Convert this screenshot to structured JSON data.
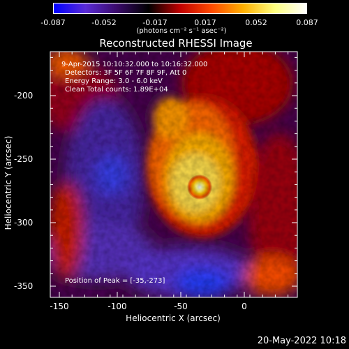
{
  "colorbar": {
    "ticks": [
      "-0.087",
      "-0.052",
      "-0.017",
      "0.017",
      "0.052",
      "0.087"
    ],
    "units": "(photons cm⁻² s⁻¹ asec⁻²)",
    "colors": [
      "#0000ff",
      "#5a2bd6",
      "#3a0a6a",
      "#000000",
      "#c00000",
      "#ff4a00",
      "#ffb000",
      "#ffff80",
      "#ffffff"
    ]
  },
  "title": "Reconstructed RHESSI Image",
  "info": {
    "line1": "9-Apr-2015 10:10:32.000 to 10:16:32.000",
    "line2": "Detectors: 3F 5F 6F 7F 8F 9F, Att 0",
    "line3": "Energy Range: 3.0 - 6.0 keV",
    "line4": "Clean     Total counts: 1.89E+04"
  },
  "peak": "Position of Peak = [-35,-273]",
  "axes": {
    "xlabel": "Heliocentric X (arcsec)",
    "ylabel": "Heliocentric Y (arcsec)",
    "xticks": [
      "-150",
      "-100",
      "-50",
      "0"
    ],
    "yticks": [
      "-200",
      "-250",
      "-300",
      "-350"
    ]
  },
  "timestamp": "20-May-2022 10:18"
}
